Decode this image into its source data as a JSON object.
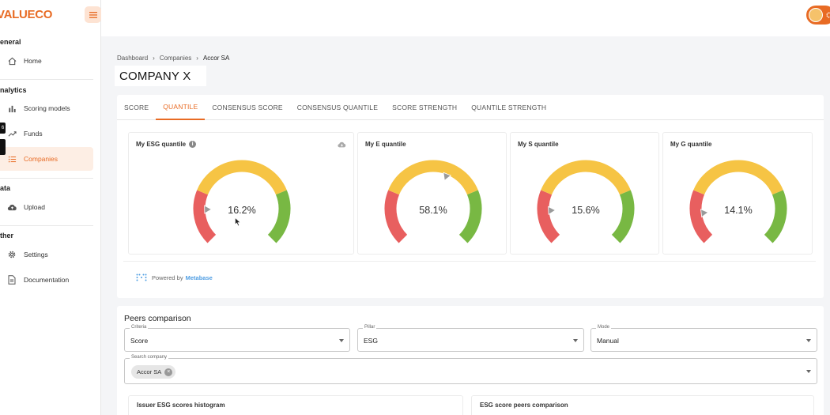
{
  "app": {
    "logo": "VALUECO"
  },
  "sidebar": {
    "sections": [
      {
        "label": "eneral",
        "items": [
          {
            "label": "Home",
            "icon": "home-icon"
          }
        ]
      },
      {
        "label": "nalytics",
        "items": [
          {
            "label": "Scoring models",
            "icon": "bar-chart-icon"
          },
          {
            "label": "Funds",
            "icon": "trend-icon"
          },
          {
            "label": "Companies",
            "icon": "list-icon",
            "active": true
          }
        ]
      },
      {
        "label": "ata",
        "items": [
          {
            "label": "Upload",
            "icon": "cloud-upload-icon"
          }
        ]
      },
      {
        "label": "ther",
        "items": [
          {
            "label": "Settings",
            "icon": "gear-icon"
          },
          {
            "label": "Documentation",
            "icon": "document-icon"
          }
        ]
      }
    ],
    "badge": "6"
  },
  "breadcrumb": {
    "items": [
      "Dashboard",
      "Companies"
    ],
    "current": "Accor SA"
  },
  "company": {
    "name": "COMPANY X"
  },
  "tabs": [
    {
      "label": "SCORE"
    },
    {
      "label": "QUANTILE",
      "active": true
    },
    {
      "label": "CONSENSUS SCORE"
    },
    {
      "label": "CONSENSUS QUANTILE"
    },
    {
      "label": "SCORE STRENGTH"
    },
    {
      "label": "QUANTILE STRENGTH"
    }
  ],
  "gauges": [
    {
      "title": "My ESG quantile",
      "value": 16.2,
      "display": "16.2%"
    },
    {
      "title": "My E quantile",
      "value": 58.1,
      "display": "58.1%"
    },
    {
      "title": "My S quantile",
      "value": 15.6,
      "display": "15.6%"
    },
    {
      "title": "My G quantile",
      "value": 14.1,
      "display": "14.1%"
    }
  ],
  "gauge_colors": {
    "low": "#e85f5f",
    "mid": "#f6c444",
    "high": "#78b843"
  },
  "powered": {
    "prefix": "Powered by",
    "brand": "Metabase"
  },
  "peers": {
    "title": "Peers comparison",
    "criteria": {
      "label": "Criteria",
      "value": "Score"
    },
    "pillar": {
      "label": "Pillar",
      "value": "ESG"
    },
    "mode": {
      "label": "Mode",
      "value": "Manual"
    },
    "search": {
      "label": "Search company",
      "chip": "Accor SA"
    },
    "histogram_title": "Issuer ESG scores histogram",
    "peers_chart_title": "ESG score peers comparison"
  },
  "colors": {
    "accent": "#e86b24"
  }
}
